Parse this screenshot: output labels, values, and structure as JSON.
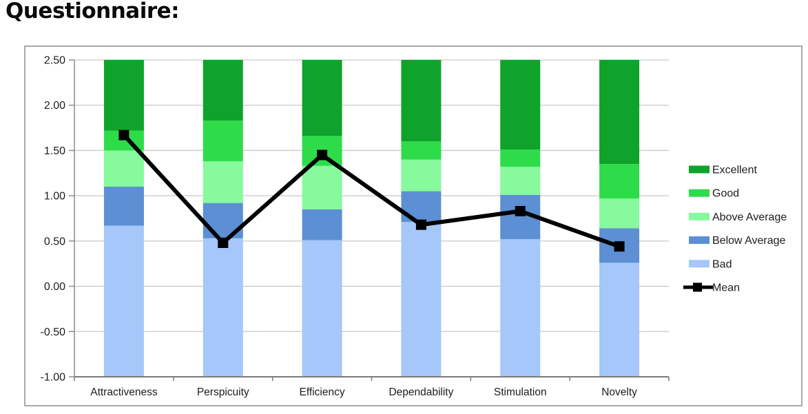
{
  "title": "Questionnaire:",
  "chart_data": {
    "type": "bar",
    "subtype": "stacked-bands-with-mean-line",
    "title": "Questionnaire:",
    "xlabel": "",
    "ylabel": "",
    "categories": [
      "Attractiveness",
      "Perspicuity",
      "Efficiency",
      "Dependability",
      "Stimulation",
      "Novelty"
    ],
    "ylim": [
      -1.0,
      2.5
    ],
    "baseline": -1.0,
    "yticks": [
      {
        "label": "2.50",
        "value": 2.5
      },
      {
        "label": "2.00",
        "value": 2.0
      },
      {
        "label": "1.50",
        "value": 1.5
      },
      {
        "label": "1.00",
        "value": 1.0
      },
      {
        "label": "0.50",
        "value": 0.5
      },
      {
        "label": "0.00",
        "value": 0.0
      },
      {
        "label": "-0.50",
        "value": -0.5
      },
      {
        "label": "-1.00",
        "value": -1.0
      }
    ],
    "grid": true,
    "legend_position": "right",
    "series": [
      {
        "name": "Bad",
        "color": "#a5c7f9",
        "tops": [
          0.67,
          0.53,
          0.51,
          0.71,
          0.52,
          0.26
        ]
      },
      {
        "name": "Below Average",
        "color": "#5c8fd3",
        "tops": [
          1.1,
          0.92,
          0.85,
          1.05,
          1.01,
          0.64
        ]
      },
      {
        "name": "Above Average",
        "color": "#86fa9c",
        "tops": [
          1.5,
          1.38,
          1.33,
          1.4,
          1.32,
          0.97
        ]
      },
      {
        "name": "Good",
        "color": "#2edc4a",
        "tops": [
          1.72,
          1.83,
          1.66,
          1.6,
          1.51,
          1.35
        ]
      },
      {
        "name": "Excellent",
        "color": "#0fa32b",
        "tops": [
          2.5,
          2.5,
          2.5,
          2.5,
          2.5,
          2.5
        ]
      }
    ],
    "mean_series": {
      "name": "Mean",
      "color": "#000000",
      "values": [
        1.67,
        0.48,
        1.45,
        0.68,
        0.83,
        0.44
      ]
    },
    "legend": [
      {
        "label": "Excellent",
        "color": "#0fa32b",
        "glyph": "box"
      },
      {
        "label": "Good",
        "color": "#2edc4a",
        "glyph": "box"
      },
      {
        "label": "Above Average",
        "color": "#86fa9c",
        "glyph": "box"
      },
      {
        "label": "Below Average",
        "color": "#5c8fd3",
        "glyph": "box"
      },
      {
        "label": "Bad",
        "color": "#a5c7f9",
        "glyph": "box"
      },
      {
        "label": "Mean",
        "color": "#000000",
        "glyph": "line-marker"
      }
    ],
    "style": {
      "grid_color": "#c9c9c9",
      "axis_color": "#8c8c8c",
      "x_axis_color": "#7a7a7a",
      "border_color": "#a9a9a9",
      "background": "#ffffff",
      "mean_line_width": 6,
      "mean_marker_size": 15
    }
  }
}
